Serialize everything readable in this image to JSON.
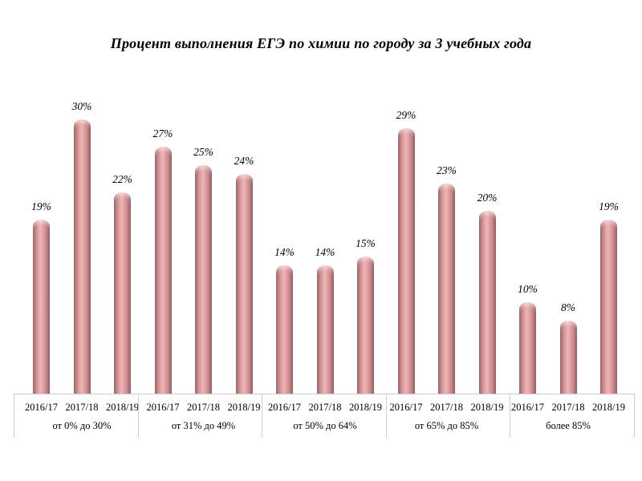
{
  "chart_data": {
    "type": "bar",
    "title": "Процент выполнения ЕГЭ по химии по городу за 3 учебных года",
    "categories": [
      "от 0% до 30%",
      "от 31% до 49%",
      "от 50% до 64%",
      "от 65% до 85%",
      "более 85%"
    ],
    "series": [
      {
        "name": "2016/17",
        "values": [
          19,
          27,
          14,
          29,
          10
        ]
      },
      {
        "name": "2017/18",
        "values": [
          30,
          25,
          14,
          23,
          8
        ]
      },
      {
        "name": "2018/19",
        "values": [
          22,
          24,
          15,
          20,
          19
        ]
      }
    ],
    "value_suffix": "%",
    "data_labels": "above each bar, italic",
    "ylim": [
      0,
      33
    ],
    "grid": false,
    "legend_position": "none",
    "bar_style": "3d-cylinder",
    "colors": {
      "bar_fill": "#dd9a9d",
      "bar_highlight": "#f0b4b6",
      "bar_edge": "#8f585d",
      "axis_line": "#c9ced3",
      "text": "#000000",
      "background": "#ffffff"
    }
  }
}
